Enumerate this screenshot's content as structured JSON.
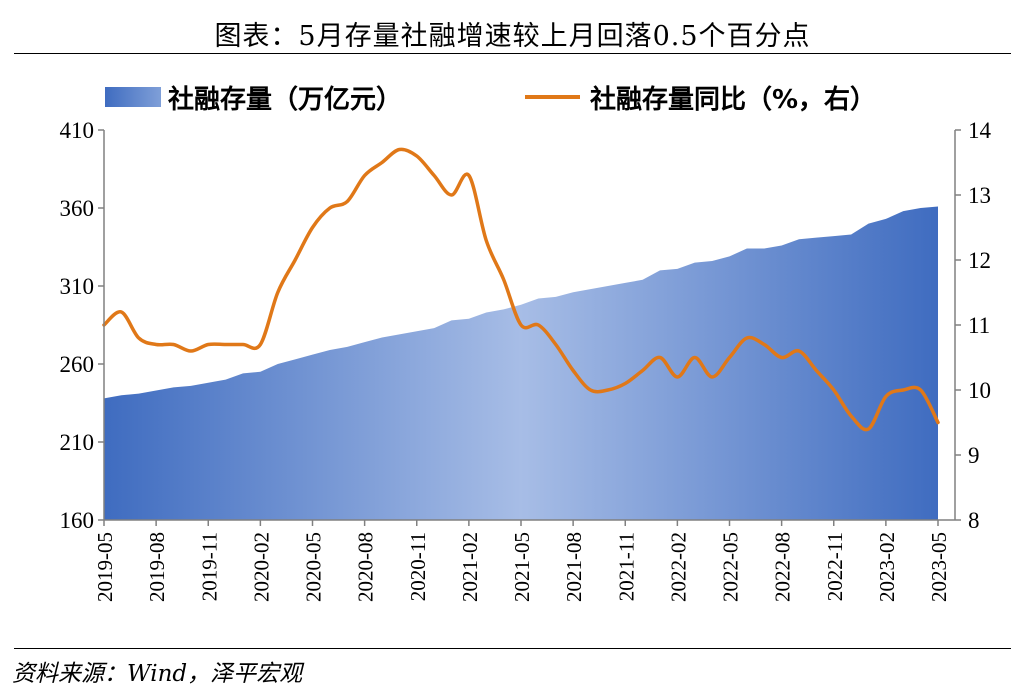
{
  "title": "图表：5月存量社融增速较上月回落0.5个百分点",
  "source": "资料来源：Wind，泽平宏观",
  "colors": {
    "area_dark": "#3f6cc0",
    "area_light": "#a7bde6",
    "line": "#e07818",
    "axis": "#808080"
  },
  "chart_data": {
    "type": "area",
    "x_tick_labels": [
      "2019-05",
      "2019-08",
      "2019-11",
      "2020-02",
      "2020-05",
      "2020-08",
      "2020-11",
      "2021-02",
      "2021-05",
      "2021-08",
      "2021-11",
      "2022-02",
      "2022-05",
      "2022-08",
      "2022-11",
      "2023-02",
      "2023-05"
    ],
    "legend_position": "top",
    "grid": false,
    "x": [
      "2019-05",
      "2019-06",
      "2019-07",
      "2019-08",
      "2019-09",
      "2019-10",
      "2019-11",
      "2019-12",
      "2020-01",
      "2020-02",
      "2020-03",
      "2020-04",
      "2020-05",
      "2020-06",
      "2020-07",
      "2020-08",
      "2020-09",
      "2020-10",
      "2020-11",
      "2020-12",
      "2021-01",
      "2021-02",
      "2021-03",
      "2021-04",
      "2021-05",
      "2021-06",
      "2021-07",
      "2021-08",
      "2021-09",
      "2021-10",
      "2021-11",
      "2021-12",
      "2022-01",
      "2022-02",
      "2022-03",
      "2022-04",
      "2022-05",
      "2022-06",
      "2022-07",
      "2022-08",
      "2022-09",
      "2022-10",
      "2022-11",
      "2022-12",
      "2023-01",
      "2023-02",
      "2023-03",
      "2023-04",
      "2023-05"
    ],
    "series": [
      {
        "name": "社融存量（万亿元）",
        "type": "area",
        "axis": "left",
        "values": [
          238,
          240,
          241,
          243,
          245,
          246,
          248,
          250,
          254,
          255,
          260,
          263,
          266,
          269,
          271,
          274,
          277,
          279,
          281,
          283,
          288,
          289,
          293,
          295,
          298,
          302,
          303,
          306,
          308,
          310,
          312,
          314,
          320,
          321,
          325,
          326,
          329,
          334,
          334,
          336,
          340,
          341,
          342,
          343,
          350,
          353,
          358,
          360,
          361
        ]
      },
      {
        "name": "社融存量同比（%，右）",
        "type": "line",
        "axis": "right",
        "values": [
          11.0,
          11.2,
          10.8,
          10.7,
          10.7,
          10.6,
          10.7,
          10.7,
          10.7,
          10.7,
          11.5,
          12.0,
          12.5,
          12.8,
          12.9,
          13.3,
          13.5,
          13.7,
          13.6,
          13.3,
          13.0,
          13.3,
          12.3,
          11.7,
          11.0,
          11.0,
          10.7,
          10.3,
          10.0,
          10.0,
          10.1,
          10.3,
          10.5,
          10.2,
          10.5,
          10.2,
          10.5,
          10.8,
          10.7,
          10.5,
          10.6,
          10.3,
          10.0,
          9.6,
          9.4,
          9.9,
          10.0,
          10.0,
          9.5
        ]
      }
    ],
    "y_left": {
      "ylim": [
        160,
        410
      ],
      "ticks": [
        160,
        210,
        260,
        310,
        360,
        410
      ]
    },
    "y_right": {
      "ylim": [
        8,
        14
      ],
      "ticks": [
        8,
        9,
        10,
        11,
        12,
        13,
        14
      ]
    }
  }
}
